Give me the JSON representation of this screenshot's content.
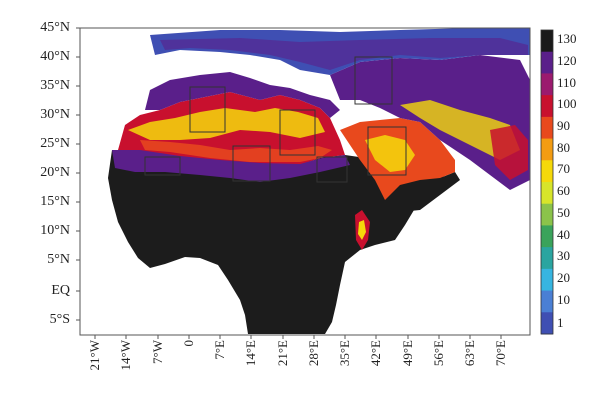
{
  "lat_labels": [
    "45°N",
    "40°N",
    "35°N",
    "30°N",
    "25°N",
    "20°N",
    "15°N",
    "10°N",
    "5°N",
    "EQ",
    "5°S"
  ],
  "lon_labels": [
    "21°W",
    "14°W",
    "7°W",
    "0",
    "7°E",
    "14°E",
    "21°E",
    "28°E",
    "35°E",
    "42°E",
    "49°E",
    "56°E",
    "63°E",
    "70°E"
  ],
  "colorbar": {
    "labels": [
      "130",
      "120",
      "110",
      "100",
      "90",
      "80",
      "70",
      "60",
      "50",
      "40",
      "30",
      "20",
      "10",
      "1"
    ],
    "colors": [
      "#1a1a1a",
      "#5a1f8a",
      "#9b1a6e",
      "#c8102e",
      "#e8491d",
      "#f39c12",
      "#f5d90a",
      "#d7e52a",
      "#8bc34a",
      "#3aa35b",
      "#2aa5a0",
      "#36b5e0",
      "#4a7fd4",
      "#3f4fb3"
    ]
  },
  "colors": {
    "ocean": "#ffffff",
    "land_dark": "#1c1c1c",
    "box_stroke": "#333333"
  }
}
